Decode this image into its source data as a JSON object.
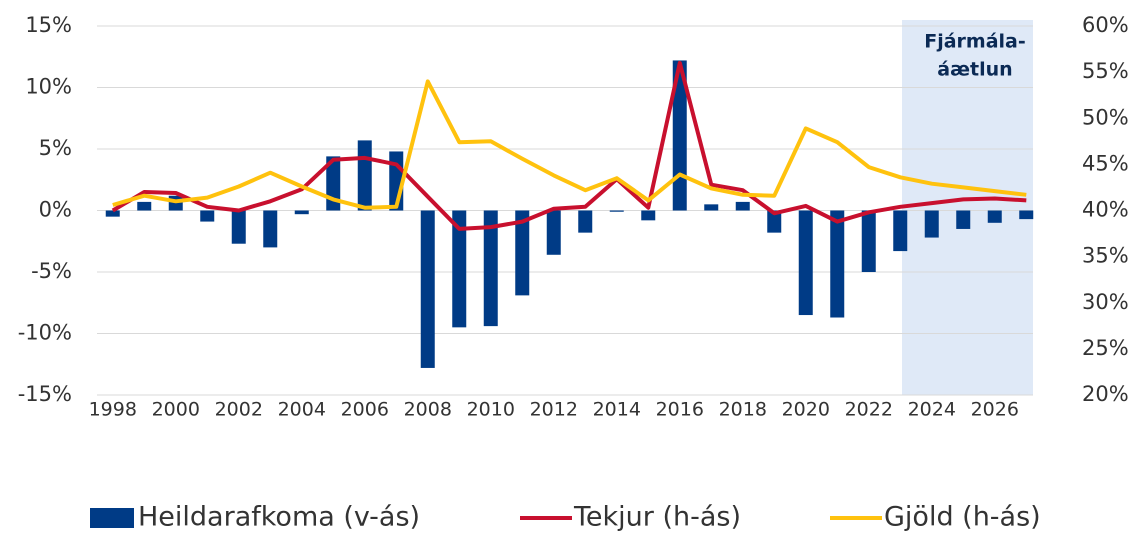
{
  "chart_data": {
    "type": "bar-line",
    "annotation": [
      "Fjármála-",
      "áætlun"
    ],
    "categories": [
      "1998",
      null,
      "2000",
      null,
      "2002",
      null,
      "2004",
      null,
      "2006",
      null,
      "2008",
      null,
      "2010",
      null,
      "2012",
      null,
      "2014",
      null,
      "2016",
      null,
      "2018",
      null,
      "2020",
      null,
      "2022",
      null,
      "2024",
      null,
      "2026",
      null
    ],
    "series": [
      {
        "name": "Heildarafkoma (v-ás)",
        "color": "#003b86",
        "type": "bar",
        "values": [
          -0.5,
          0.7,
          1.2,
          -0.9,
          -2.7,
          -3.0,
          -0.3,
          4.4,
          5.7,
          4.8,
          -12.8,
          -9.5,
          -9.4,
          -6.9,
          -3.6,
          -1.8,
          -0.1,
          -0.8,
          12.2,
          0.5,
          0.7,
          -1.8,
          -8.5,
          -8.7,
          -5.0,
          -3.3,
          -2.2,
          -1.5,
          -1.0,
          -0.7
        ]
      },
      {
        "name": "Tekjur (h-ás)",
        "color": "#c8102e",
        "type": "line",
        "axis": "y2",
        "values": [
          40.0,
          42.0,
          41.9,
          40.4,
          40.0,
          41.0,
          42.3,
          45.5,
          45.7,
          45.0,
          41.5,
          38.0,
          38.2,
          38.8,
          40.2,
          40.4,
          43.4,
          40.3,
          56.0,
          42.8,
          42.2,
          39.7,
          40.5,
          38.8,
          39.8,
          40.4,
          40.8,
          41.2,
          41.3,
          41.1
        ]
      },
      {
        "name": "Gjöld (h-ás)",
        "color": "#ffc20e",
        "type": "line",
        "axis": "y2",
        "values": [
          40.6,
          41.6,
          41.0,
          41.4,
          42.6,
          44.1,
          42.6,
          41.2,
          40.3,
          40.4,
          54.0,
          47.4,
          47.5,
          45.6,
          43.8,
          42.2,
          43.5,
          41.1,
          43.9,
          42.4,
          41.7,
          41.6,
          48.9,
          47.4,
          44.7,
          43.6,
          42.9,
          42.5,
          42.1,
          41.7
        ]
      }
    ],
    "ylim": [
      -15,
      15
    ],
    "yticks": [
      {
        "value": 15,
        "label": "15%"
      },
      {
        "value": 10,
        "label": "10%"
      },
      {
        "value": 5,
        "label": "5%"
      },
      {
        "value": 0,
        "label": "0%"
      },
      {
        "value": -5,
        "label": "-5%"
      },
      {
        "value": -10,
        "label": "-10%"
      },
      {
        "value": -15,
        "label": "-15%"
      }
    ],
    "y2lim": [
      20,
      60
    ],
    "y2ticks": [
      {
        "value": 60,
        "label": "60%"
      },
      {
        "value": 55,
        "label": "55%"
      },
      {
        "value": 50,
        "label": "50%"
      },
      {
        "value": 45,
        "label": "45%"
      },
      {
        "value": 40,
        "label": "40%"
      },
      {
        "value": 35,
        "label": "35%"
      },
      {
        "value": 30,
        "label": "30%"
      },
      {
        "value": 25,
        "label": "25%"
      },
      {
        "value": 20,
        "label": "20%"
      }
    ],
    "grid": true,
    "legend": "bottom"
  }
}
